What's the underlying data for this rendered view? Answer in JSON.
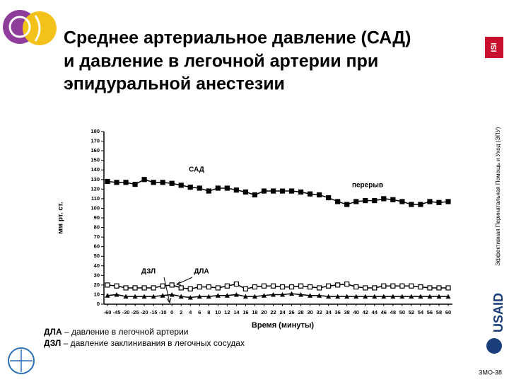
{
  "title_lines": [
    "Среднее артериальное давление (САД)",
    "и давление в легочной артерии при",
    "эпидуральной анестезии"
  ],
  "side_text": "Эффективная Перинатальная Помощь и Уход (ЭПУ)",
  "logo_text": "USAID",
  "slide_number": "ЗМО-38",
  "notes": [
    {
      "term": "ДЛА",
      "text": " – давление в легочной артерии"
    },
    {
      "term": "ДЗЛ",
      "text": " – давление заклинивания  в легочных сосудах"
    }
  ],
  "chart_data": {
    "type": "line",
    "ylabel": "мм рт. ст.",
    "xlabel": "Время (минуты)",
    "annotations": [
      "САД",
      "перерыв",
      "ДЗЛ",
      "ДЛА"
    ],
    "categories": [
      "-60",
      "-45",
      "-30",
      "-25",
      "-20",
      "-15",
      "-10",
      "0",
      "2",
      "4",
      "6",
      "8",
      "10",
      "12",
      "14",
      "16",
      "18",
      "20",
      "22",
      "24",
      "26",
      "28",
      "30",
      "32",
      "34",
      "36",
      "38",
      "40",
      "42",
      "44",
      "46",
      "48",
      "50",
      "52",
      "54",
      "56",
      "58",
      "60"
    ],
    "series": [
      {
        "name": "САД",
        "color": "#000000",
        "marker": "square",
        "values": [
          128,
          127,
          127,
          125,
          130,
          127,
          127,
          126,
          124,
          122,
          121,
          118,
          121,
          121,
          119,
          117,
          114,
          118,
          118,
          118,
          118,
          117,
          115,
          114,
          111,
          107,
          104,
          107,
          108,
          108,
          110,
          109,
          107,
          104,
          104,
          107,
          106,
          107
        ]
      },
      {
        "name": "ДЛА",
        "color": "#000000",
        "marker": "open-square",
        "values": [
          20,
          19,
          17,
          17,
          17,
          17,
          19,
          20,
          17,
          16,
          18,
          18,
          17,
          19,
          21,
          16,
          18,
          19,
          19,
          18,
          18,
          19,
          18,
          17,
          19,
          20,
          21,
          18,
          17,
          17,
          19,
          19,
          19,
          19,
          18,
          17,
          17,
          17
        ]
      },
      {
        "name": "ДЗЛ",
        "color": "#000000",
        "marker": "triangle",
        "values": [
          9,
          10,
          8,
          8,
          8,
          8,
          9,
          10,
          8,
          7,
          8,
          8,
          9,
          9,
          10,
          8,
          8,
          9,
          10,
          10,
          11,
          10,
          9,
          9,
          8,
          8,
          8,
          8,
          8,
          8,
          8,
          8,
          8,
          8,
          8,
          8,
          8,
          8
        ]
      }
    ],
    "ylim": [
      0,
      180
    ],
    "yticks": [
      0,
      10,
      20,
      30,
      40,
      50,
      60,
      70,
      80,
      90,
      100,
      110,
      120,
      130,
      140,
      150,
      160,
      170,
      180
    ],
    "grid": false
  }
}
